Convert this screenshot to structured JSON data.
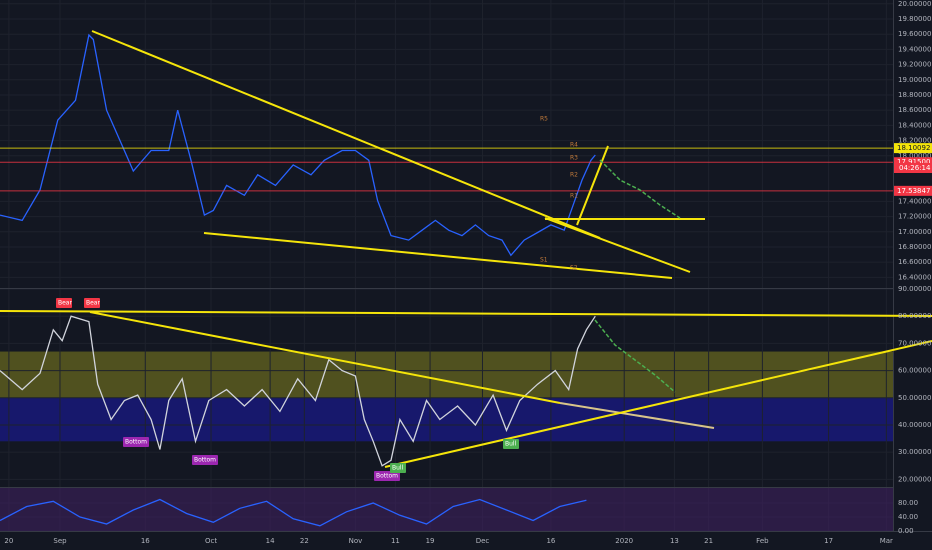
{
  "chart_data": [
    {
      "type": "line",
      "color": "#2962ff",
      "x": [
        0,
        5,
        9,
        13,
        17,
        20,
        21,
        24,
        27,
        30,
        34,
        38,
        40,
        43,
        46,
        48,
        51,
        55,
        58,
        62,
        66,
        70,
        73,
        77,
        80,
        83,
        85,
        88,
        92,
        95,
        98,
        101,
        104,
        107,
        110,
        113,
        115,
        118,
        121,
        124,
        127,
        129,
        131,
        133,
        134
      ],
      "values": [
        17.22,
        17.15,
        17.55,
        18.47,
        18.73,
        19.59,
        19.53,
        18.6,
        18.2,
        17.8,
        18.07,
        18.07,
        18.6,
        17.94,
        17.22,
        17.28,
        17.61,
        17.48,
        17.75,
        17.61,
        17.88,
        17.75,
        17.94,
        18.07,
        18.07,
        17.94,
        17.41,
        16.95,
        16.89,
        17.02,
        17.15,
        17.02,
        16.95,
        17.09,
        16.95,
        16.89,
        16.69,
        16.89,
        16.99,
        17.09,
        17.02,
        17.35,
        17.68,
        17.94,
        18.01
      ],
      "xlim": [
        0,
        201
      ],
      "xticks": [
        {
          "value": 2,
          "label": "20"
        },
        {
          "value": 13.5,
          "label": "Sep"
        },
        {
          "value": 32.7,
          "label": "16"
        },
        {
          "value": 47.5,
          "label": "Oct"
        },
        {
          "value": 60.8,
          "label": "14"
        },
        {
          "value": 68.5,
          "label": "22"
        },
        {
          "value": 80,
          "label": "Nov"
        },
        {
          "value": 89,
          "label": "11"
        },
        {
          "value": 96.8,
          "label": "19"
        },
        {
          "value": 108.6,
          "label": "Dec"
        },
        {
          "value": 124,
          "label": "16"
        },
        {
          "value": 140.5,
          "label": "2020"
        },
        {
          "value": 151.8,
          "label": "13"
        },
        {
          "value": 159.5,
          "label": "21"
        },
        {
          "value": 171.6,
          "label": "Feb"
        },
        {
          "value": 186.5,
          "label": "17"
        },
        {
          "value": 199.5,
          "label": "Mar"
        }
      ],
      "ylim": [
        16.26,
        20.05
      ],
      "yticks": [
        {
          "value": 20,
          "label": "20.00000"
        },
        {
          "value": 19.8,
          "label": "19.80000"
        },
        {
          "value": 19.6,
          "label": "19.60000"
        },
        {
          "value": 19.4,
          "label": "19.40000"
        },
        {
          "value": 19.2,
          "label": "19.20000"
        },
        {
          "value": 19,
          "label": "19.00000"
        },
        {
          "value": 18.8,
          "label": "18.80000"
        },
        {
          "value": 18.6,
          "label": "18.60000"
        },
        {
          "value": 18.4,
          "label": "18.40000"
        },
        {
          "value": 18.2,
          "label": "18.20000"
        },
        {
          "value": 18,
          "label": "18.00000"
        },
        {
          "value": 17.4,
          "label": "17.40000"
        },
        {
          "value": 17.2,
          "label": "17.20000"
        },
        {
          "value": 17,
          "label": "17.00000"
        },
        {
          "value": 16.8,
          "label": "16.80000"
        },
        {
          "value": 16.6,
          "label": "16.60000"
        },
        {
          "value": 16.4,
          "label": "16.40000"
        }
      ],
      "price_labels": [
        {
          "value": 18.10092,
          "label": "18.10092",
          "color": "#f5e50a"
        },
        {
          "value": 17.915,
          "label": "17.91500",
          "color": "#f23645"
        },
        {
          "value": 17.53847,
          "label": "17.53847",
          "color": "#f23645"
        }
      ],
      "countdown": "04:26:14",
      "pivots": [
        "R5",
        "R4",
        "R3",
        "R2",
        "R1",
        "S1",
        "S2"
      ]
    },
    {
      "type": "line",
      "color": "#d1d4dc",
      "x": [
        0,
        5,
        9,
        12,
        14,
        16,
        20,
        22,
        25,
        28,
        31,
        34,
        36,
        38,
        41,
        44,
        47,
        51,
        55,
        59,
        63,
        67,
        71,
        74,
        77,
        80,
        82,
        84,
        86,
        88,
        90,
        93,
        96,
        99,
        103,
        107,
        111,
        114,
        117,
        121,
        125,
        128,
        130,
        132,
        134
      ],
      "values": [
        60,
        53,
        59,
        75,
        71,
        80,
        78,
        55,
        42,
        49,
        51,
        42,
        31,
        49,
        57,
        34,
        49,
        53,
        47,
        53,
        45,
        57,
        49,
        64,
        60,
        58,
        42,
        34,
        25,
        27,
        42,
        34,
        49,
        42,
        47,
        40,
        51,
        38,
        49,
        55,
        60,
        53,
        68,
        75,
        80
      ],
      "xlim": [
        0,
        201
      ],
      "ylim": [
        17.2,
        90
      ],
      "yticks": [
        {
          "value": 90,
          "label": "90.00000"
        },
        {
          "value": 80,
          "label": "80.00000"
        },
        {
          "value": 70,
          "label": "70.00000"
        },
        {
          "value": 60,
          "label": "60.00000"
        },
        {
          "value": 50,
          "label": "50.00000"
        },
        {
          "value": 40,
          "label": "40.00000"
        },
        {
          "value": 30,
          "label": "30.00000"
        },
        {
          "value": 20,
          "label": "20.00000"
        }
      ],
      "bands": [
        {
          "from": 50,
          "to": 67,
          "color": "#6b6b1e"
        },
        {
          "from": 34,
          "to": 50,
          "color": "#1a1a8c"
        }
      ],
      "annotations": [
        "Bear",
        "Bear",
        "Bottom",
        "Bottom",
        "Bottom",
        "Bull",
        "Bull"
      ]
    },
    {
      "type": "line",
      "color": "#2962ff",
      "x": [
        0,
        6,
        12,
        18,
        24,
        30,
        36,
        42,
        48,
        54,
        60,
        66,
        72,
        78,
        84,
        90,
        96,
        102,
        108,
        114,
        120,
        126,
        132
      ],
      "values": [
        30,
        70,
        85,
        40,
        20,
        60,
        90,
        50,
        25,
        65,
        85,
        35,
        15,
        55,
        80,
        45,
        20,
        70,
        90,
        60,
        30,
        70,
        88
      ],
      "xlim": [
        0,
        201
      ],
      "ylim": [
        0,
        123
      ],
      "yticks": [
        {
          "value": 80,
          "label": "80.00"
        },
        {
          "value": 40,
          "label": "40.00"
        },
        {
          "value": 0,
          "label": "0.00"
        }
      ]
    }
  ]
}
